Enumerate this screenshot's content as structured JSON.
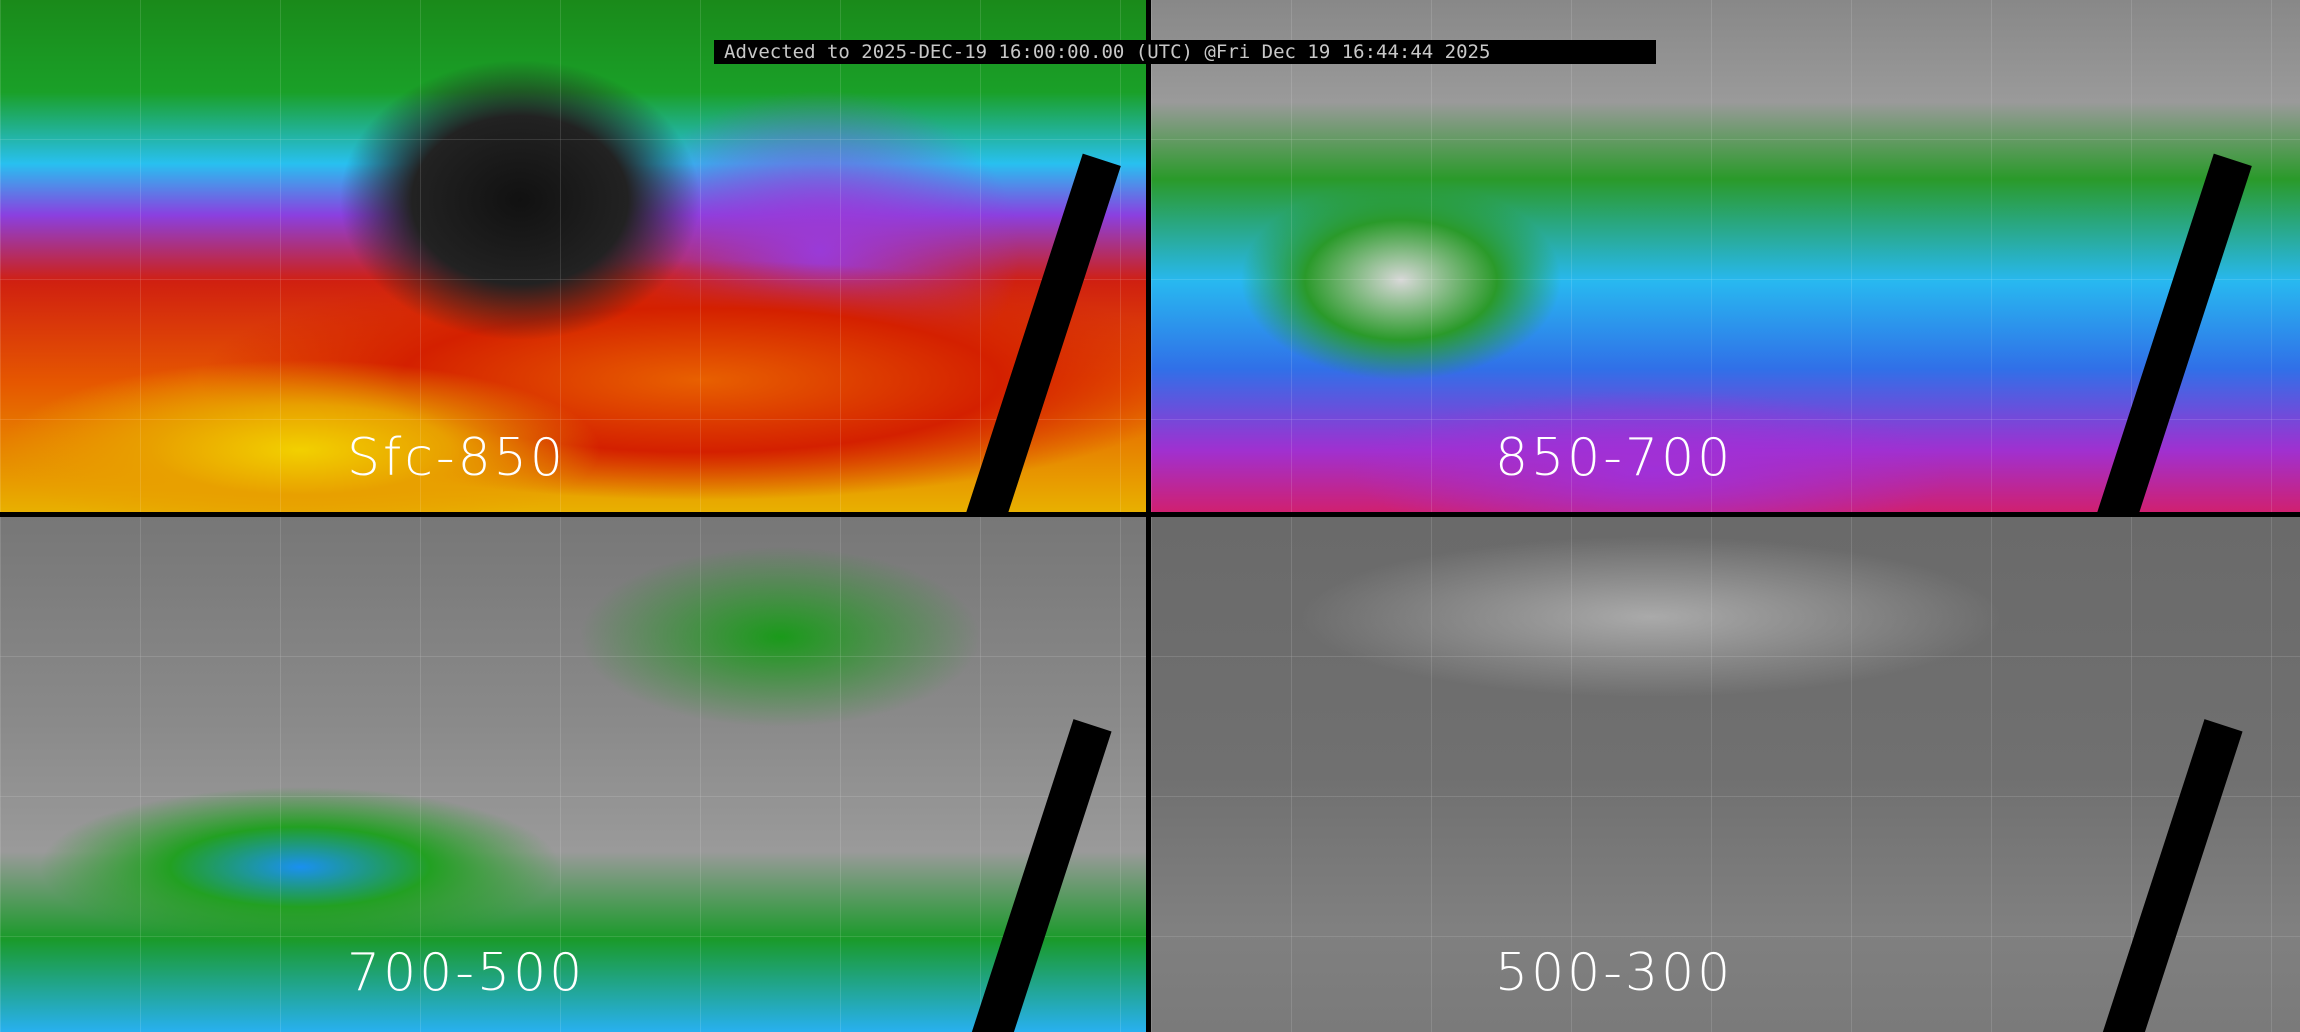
{
  "banner": {
    "text": "Advected to 2025-DEC-19 16:00:00.00 (UTC) @Fri Dec 19 16:44:44 2025"
  },
  "panels": [
    {
      "label": "Sfc-850"
    },
    {
      "label": "850-700"
    },
    {
      "label": "700-500"
    },
    {
      "label": "500-300"
    }
  ]
}
